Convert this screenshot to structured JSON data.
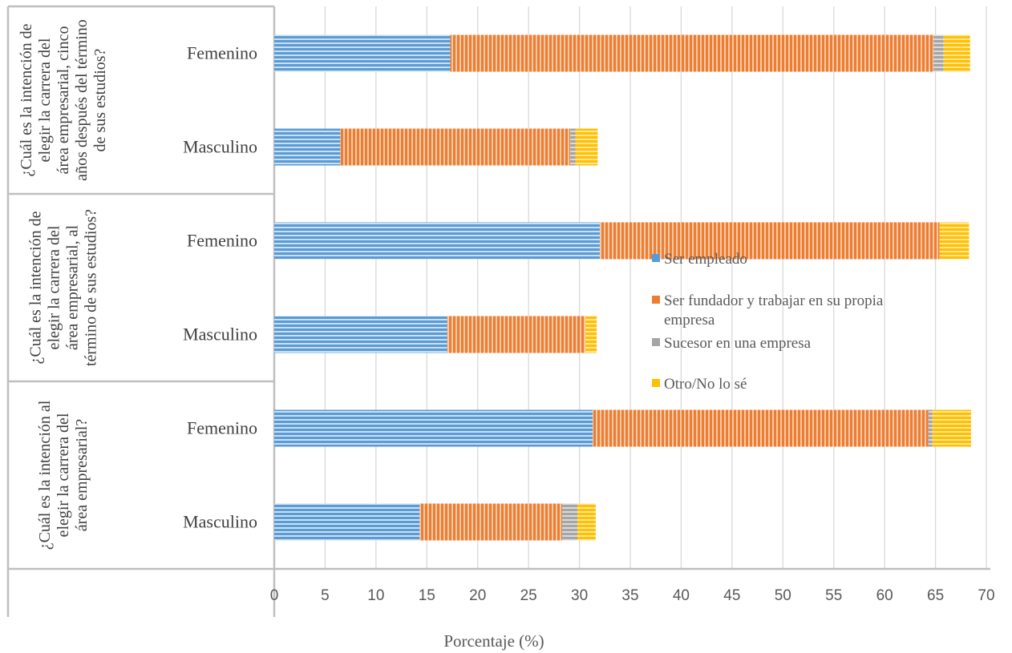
{
  "chart_data": {
    "type": "bar",
    "orientation": "horizontal",
    "stacked": true,
    "xlabel": "Porcentaje (%)",
    "xlim": [
      0,
      70
    ],
    "x_ticks": [
      0,
      5,
      10,
      15,
      20,
      25,
      30,
      35,
      40,
      45,
      50,
      55,
      60,
      65,
      70
    ],
    "grid": true,
    "legend_position": "center-right",
    "groups": [
      {
        "label": "¿Cuál es la intención de elegir la carrera del área empresarial, cinco años después del término de sus estudios?",
        "categories": [
          "Femenino",
          "Masculino"
        ]
      },
      {
        "label": "¿Cuál es la intención de elegir la carrera del área empresarial, al término de sus estudios?",
        "categories": [
          "Femenino",
          "Masculino"
        ]
      },
      {
        "label": "¿Cuál es la intención al elegir la carrera del área empresarial?",
        "categories": [
          "Femenino",
          "Masculino"
        ]
      }
    ],
    "series": [
      {
        "name": "Ser empleado",
        "color": "#5b9bd5",
        "values": [
          17.3,
          6.5,
          32.0,
          17.0,
          31.3,
          14.3
        ]
      },
      {
        "name": "Ser fundador y trabajar en su propia empresa",
        "color": "#ed7d31",
        "values": [
          47.5,
          22.6,
          33.4,
          13.6,
          33.0,
          14.0
        ]
      },
      {
        "name": "Sucesor en una empresa",
        "color": "#a5a5a5",
        "values": [
          1.0,
          0.5,
          0.0,
          0.0,
          0.4,
          1.5
        ]
      },
      {
        "name": "Otro/No lo sé",
        "color": "#ffc000",
        "values": [
          2.6,
          2.2,
          2.9,
          1.1,
          3.8,
          1.8
        ]
      }
    ]
  }
}
